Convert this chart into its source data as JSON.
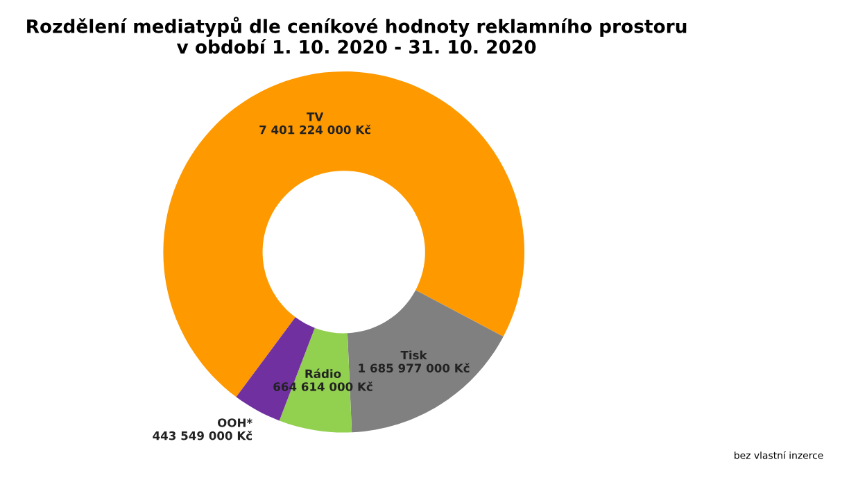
{
  "chart_data": {
    "type": "donut",
    "title": "Rozdělení mediatypů dle ceníkové hodnoty reklamního prostoru\nv období 1. 10. 2020 - 31. 10. 2020",
    "categories": [
      "TV",
      "Tisk",
      "Rádio",
      "OOH*"
    ],
    "values": [
      7401224000,
      1685977000,
      664614000,
      443549000
    ],
    "value_labels": [
      "7 401 224 000 Kč",
      "1 685 977 000 Kč",
      "664 614 000 Kč",
      "443 549 000 Kč"
    ],
    "colors": [
      "#ff9900",
      "#808080",
      "#92d050",
      "#7030a0"
    ],
    "annotations": [
      "bez vlastní inzerce"
    ]
  }
}
